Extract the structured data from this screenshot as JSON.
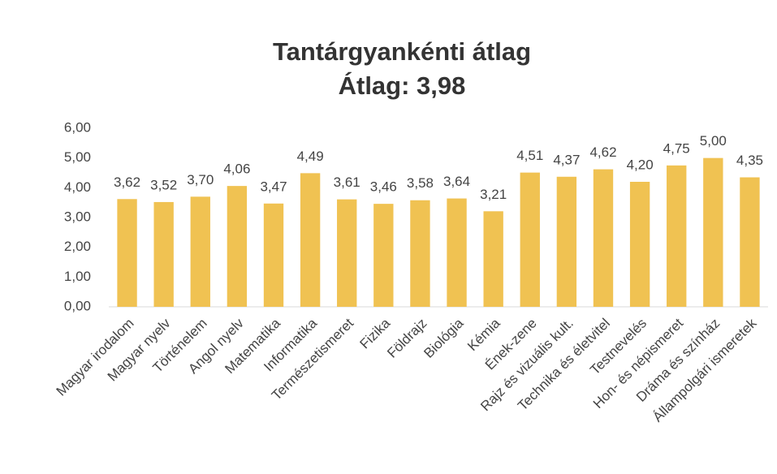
{
  "chart_data": {
    "type": "bar",
    "title": "Tantárgyankénti átlag",
    "subtitle": "Átlag: 3,98",
    "categories": [
      "Magyar irodalom",
      "Magyar nyelv",
      "Történelem",
      "Angol nyelv",
      "Matematika",
      "Informatika",
      "Természetismeret",
      "Fizika",
      "Földrajz",
      "Biológia",
      "Kémia",
      "Ének-zene",
      "Rajz és vizuális kult.",
      "Technika és életvitel",
      "Testnevelés",
      "Hon- és népismeret",
      "Dráma és színház",
      "Állampolgári ismeretek"
    ],
    "values": [
      3.62,
      3.52,
      3.7,
      4.06,
      3.47,
      4.49,
      3.61,
      3.46,
      3.58,
      3.64,
      3.21,
      4.51,
      4.37,
      4.62,
      4.2,
      4.75,
      5.0,
      4.35
    ],
    "value_labels": [
      "3,62",
      "3,52",
      "3,70",
      "4,06",
      "3,47",
      "4,49",
      "3,61",
      "3,46",
      "3,58",
      "3,64",
      "3,21",
      "4,51",
      "4,37",
      "4,62",
      "4,20",
      "4,75",
      "5,00",
      "4,35"
    ],
    "color": "#f0c252",
    "ylim": [
      0,
      6
    ],
    "yticks": [
      {
        "value": 0,
        "label": "0,00"
      },
      {
        "value": 1,
        "label": "1,00"
      },
      {
        "value": 2,
        "label": "2,00"
      },
      {
        "value": 3,
        "label": "3,00"
      },
      {
        "value": 4,
        "label": "4,00"
      },
      {
        "value": 5,
        "label": "5,00"
      },
      {
        "value": 6,
        "label": "6,00"
      }
    ],
    "grid": false
  }
}
